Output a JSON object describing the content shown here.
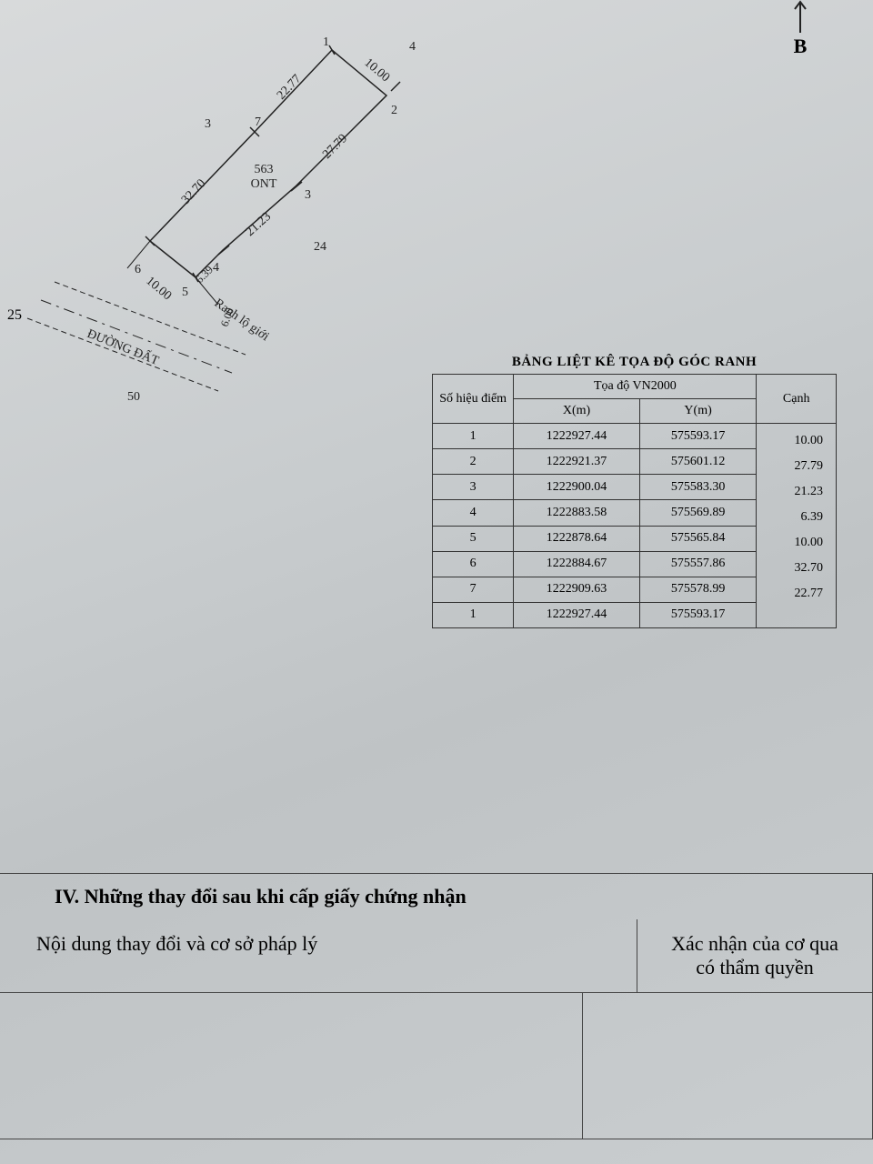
{
  "compass": {
    "label": "B"
  },
  "diagram": {
    "parcel_label": "563",
    "parcel_type": "ONT",
    "road_label": "ĐƯỜNG ĐẤT",
    "boundary_label": "Ranh lộ giới",
    "outer_labels": {
      "n3": "3",
      "n4": "4",
      "n24": "24",
      "n25": "25",
      "n50": "50"
    },
    "vertices": {
      "v1": "1",
      "v2": "2",
      "v3": "3",
      "v4": "4",
      "v5": "5",
      "v6": "6",
      "v7": "7"
    },
    "edges": {
      "e12": "10.00",
      "e23": "27.79",
      "e34": "21.23",
      "e45": "6.39",
      "e56": "10.00",
      "e67": "32.70",
      "e71": "22.77",
      "e_extra": "6.00"
    }
  },
  "coord_table": {
    "title": "BẢNG LIỆT KÊ TỌA ĐỘ GÓC RANH",
    "head": {
      "point": "Số hiệu điểm",
      "coord": "Tọa độ VN2000",
      "x": "X(m)",
      "y": "Y(m)",
      "edge": "Cạnh"
    },
    "rows": [
      {
        "p": "1",
        "x": "1222927.44",
        "y": "575593.17"
      },
      {
        "p": "2",
        "x": "1222921.37",
        "y": "575601.12"
      },
      {
        "p": "3",
        "x": "1222900.04",
        "y": "575583.30"
      },
      {
        "p": "4",
        "x": "1222883.58",
        "y": "575569.89"
      },
      {
        "p": "5",
        "x": "1222878.64",
        "y": "575565.84"
      },
      {
        "p": "6",
        "x": "1222884.67",
        "y": "575557.86"
      },
      {
        "p": "7",
        "x": "1222909.63",
        "y": "575578.99"
      },
      {
        "p": "1",
        "x": "1222927.44",
        "y": "575593.17"
      }
    ],
    "edges": [
      "10.00",
      "27.79",
      "21.23",
      "6.39",
      "10.00",
      "32.70",
      "22.77"
    ]
  },
  "section4": {
    "title": "IV. Những thay đổi sau khi cấp giấy chứng nhận",
    "col1": "Nội dung thay đổi và cơ sở pháp lý",
    "col2_l1": "Xác nhận của cơ qua",
    "col2_l2": "có thẩm quyền"
  }
}
